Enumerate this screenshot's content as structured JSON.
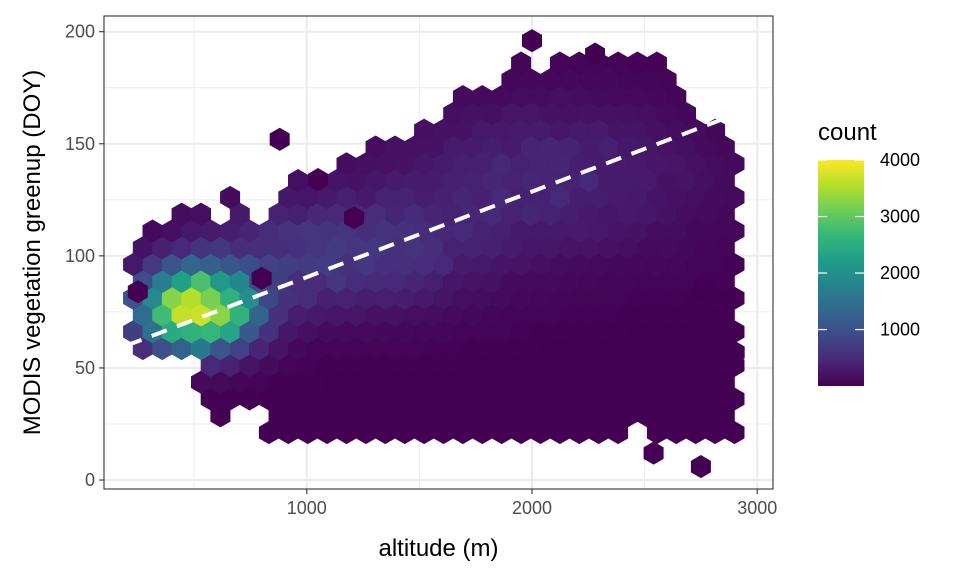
{
  "chart_data": {
    "type": "heatmap",
    "subtype": "hexbin",
    "xlabel": "altitude (m)",
    "ylabel": "MODIS vegetation greenup (DOY)",
    "xlim": [
      100,
      3070
    ],
    "ylim": [
      -4,
      207
    ],
    "x_ticks": [
      1000,
      2000,
      3000
    ],
    "y_ticks": [
      0,
      50,
      100,
      150,
      200
    ],
    "x_tick_labels": [
      "1000",
      "2000",
      "3000"
    ],
    "y_tick_labels": [
      "0",
      "50",
      "100",
      "150",
      "200"
    ],
    "grid": true,
    "legend": {
      "title": "count",
      "placement": "right",
      "range": [
        1,
        4000
      ],
      "ticks": [
        1000,
        2000,
        3000,
        4000
      ],
      "tick_labels": [
        "1000",
        "2000",
        "3000",
        "4000"
      ],
      "colormap": "viridis",
      "colors": [
        "#440154",
        "#482878",
        "#3e4a89",
        "#31688e",
        "#26828e",
        "#1f9e89",
        "#35b779",
        "#6ece58",
        "#b5de2b",
        "#fde725"
      ]
    },
    "trend_line": {
      "style": "dashed",
      "color": "#ffffff",
      "x": [
        200,
        2900
      ],
      "y": [
        60,
        163
      ]
    },
    "density_model": {
      "note_visible": false,
      "clusters": [
        {
          "x": 520,
          "y": 76,
          "sx": 170,
          "sy": 12,
          "peak": 4000
        },
        {
          "x": 1100,
          "y": 100,
          "sx": 420,
          "sy": 18,
          "peak": 650
        },
        {
          "x": 2050,
          "y": 135,
          "sx": 500,
          "sy": 24,
          "peak": 420
        }
      ]
    }
  }
}
